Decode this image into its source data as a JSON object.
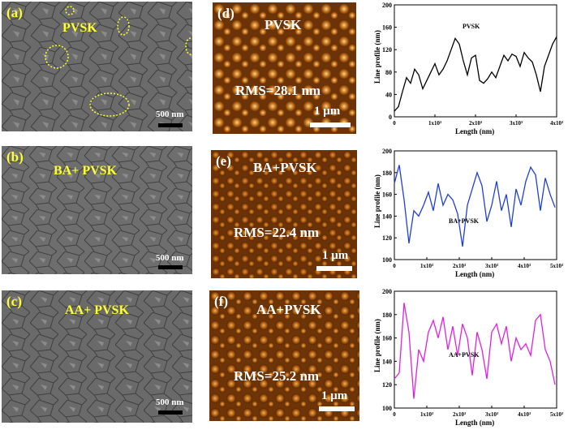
{
  "sem_panels": [
    {
      "letter": "(a)",
      "title": "PVSK",
      "scale": "500 nm"
    },
    {
      "letter": "(b)",
      "title": "BA+ PVSK",
      "scale": "500 nm"
    },
    {
      "letter": "(c)",
      "title": "AA+ PVSK",
      "scale": "500 nm"
    }
  ],
  "afm_panels": [
    {
      "letter": "(d)",
      "title": "PVSK",
      "rms": "RMS=28.1 nm",
      "scale": "1 μm"
    },
    {
      "letter": "(e)",
      "title": "BA+PVSK",
      "rms": "RMS=22.4 nm",
      "scale": "1 μm"
    },
    {
      "letter": "(f)",
      "title": "AA+PVSK",
      "rms": "RMS=25.2 nm",
      "scale": "1 μm"
    }
  ],
  "chart_data": [
    {
      "type": "line",
      "series": [
        {
          "name": "PVSK",
          "color": "#000000",
          "x": [
            0,
            100,
            200,
            300,
            400,
            500,
            600,
            700,
            800,
            900,
            1000,
            1100,
            1200,
            1300,
            1400,
            1500,
            1600,
            1700,
            1800,
            1900,
            2000,
            2100,
            2200,
            2300,
            2400,
            2500,
            2600,
            2700,
            2800,
            2900,
            3000,
            3100,
            3200,
            3300,
            3400,
            3500,
            3600,
            3700,
            3800,
            3900,
            4000
          ],
          "y": [
            10,
            18,
            45,
            70,
            60,
            85,
            75,
            50,
            65,
            80,
            95,
            75,
            85,
            100,
            120,
            140,
            130,
            100,
            75,
            105,
            110,
            65,
            60,
            68,
            80,
            70,
            90,
            110,
            100,
            112,
            108,
            90,
            115,
            105,
            98,
            75,
            45,
            90,
            110,
            130,
            143
          ]
        }
      ],
      "xlabel": "Length  (nm)",
      "ylabel": "Line profile  (nm)",
      "xlim": [
        0,
        4000
      ],
      "ylim": [
        0,
        200
      ],
      "xticks": [
        "0",
        "1x10³",
        "2x10³",
        "3x10³",
        "4x10³"
      ],
      "yticks": [
        "0",
        "40",
        "80",
        "120",
        "160",
        "200"
      ],
      "inner_label": "PVSK"
    },
    {
      "type": "line",
      "series": [
        {
          "name": "BA+PVSK",
          "color": "#1f3fd6",
          "x": [
            0,
            150,
            300,
            450,
            600,
            750,
            900,
            1050,
            1200,
            1350,
            1500,
            1650,
            1800,
            1950,
            2100,
            2250,
            2400,
            2550,
            2700,
            2850,
            3000,
            3150,
            3300,
            3450,
            3600,
            3750,
            3900,
            4050,
            4200,
            4350,
            4500,
            4650,
            4800,
            4950
          ],
          "y": [
            170,
            187,
            155,
            115,
            145,
            140,
            150,
            162,
            145,
            170,
            150,
            160,
            155,
            142,
            112,
            150,
            165,
            180,
            168,
            135,
            150,
            172,
            145,
            160,
            130,
            165,
            150,
            172,
            185,
            178,
            145,
            175,
            160,
            148
          ]
        }
      ],
      "xlabel": "Length  (nm)",
      "ylabel": "Line profile  (nm)",
      "xlim": [
        0,
        5000
      ],
      "ylim": [
        100,
        200
      ],
      "xticks": [
        "0",
        "1x10³",
        "2x10³",
        "3x10³",
        "4x10³",
        "5x10³"
      ],
      "yticks": [
        "100",
        "120",
        "140",
        "160",
        "180",
        "200"
      ],
      "inner_label": "BA+PVSK"
    },
    {
      "type": "line",
      "series": [
        {
          "name": "AA+PVSK",
          "color": "#e020e0",
          "x": [
            0,
            150,
            300,
            450,
            600,
            750,
            900,
            1050,
            1200,
            1350,
            1500,
            1650,
            1800,
            1950,
            2100,
            2250,
            2400,
            2550,
            2700,
            2850,
            3000,
            3150,
            3300,
            3450,
            3600,
            3750,
            3900,
            4050,
            4200,
            4350,
            4500,
            4650,
            4800,
            4950
          ],
          "y": [
            125,
            130,
            190,
            165,
            108,
            150,
            140,
            165,
            175,
            160,
            178,
            150,
            170,
            145,
            172,
            160,
            128,
            165,
            150,
            125,
            165,
            172,
            155,
            170,
            140,
            160,
            150,
            155,
            145,
            175,
            180,
            150,
            140,
            120
          ]
        }
      ],
      "xlabel": "Length  (nm)",
      "ylabel": "Line profile  (nm)",
      "xlim": [
        0,
        5000
      ],
      "ylim": [
        100,
        200
      ],
      "xticks": [
        "0",
        "1x10³",
        "2x10³",
        "3x10³",
        "4x10³",
        "5x10³"
      ],
      "yticks": [
        "100",
        "120",
        "140",
        "160",
        "180",
        "200"
      ],
      "inner_label": "AA+PVSK"
    }
  ]
}
